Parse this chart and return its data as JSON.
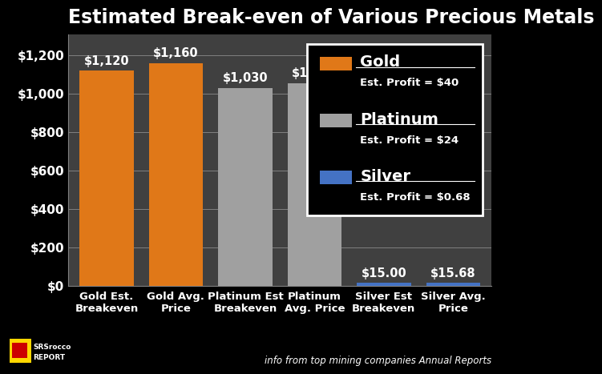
{
  "title": "Estimated Break-even of Various Precious Metals",
  "categories": [
    "Gold Est.\nBreakeven",
    "Gold Avg.\nPrice",
    "Platinum Est\nBreakeven",
    "Platinum\nAvg. Price",
    "Silver Est\nBreakeven",
    "Silver Avg.\nPrice"
  ],
  "values": [
    1120,
    1160,
    1030,
    1054,
    15.0,
    15.68
  ],
  "bar_colors": [
    "#E07818",
    "#E07818",
    "#A0A0A0",
    "#A0A0A0",
    "#4472C4",
    "#4472C4"
  ],
  "bar_labels": [
    "$1,120",
    "$1,160",
    "$1,030",
    "$1,054",
    "$15.00",
    "$15.68"
  ],
  "background_color": "#000000",
  "plot_bg_color": "#404040",
  "text_color": "#FFFFFF",
  "grid_color": "#808080",
  "ylabel_ticks": [
    0,
    200,
    400,
    600,
    800,
    1000,
    1200
  ],
  "ylabel_labels": [
    "$0",
    "$200",
    "$400",
    "$600",
    "$800",
    "$1,000",
    "$1,200"
  ],
  "ylim": [
    0,
    1310
  ],
  "legend_items": [
    {
      "label": "Gold",
      "color": "#E07818",
      "profit": "Est. Profit = $40"
    },
    {
      "label": "Platinum",
      "color": "#A0A0A0",
      "profit": "Est. Profit = $24"
    },
    {
      "label": "Silver",
      "color": "#4472C4",
      "profit": "Est. Profit = $0.68"
    }
  ],
  "footnote": "info from top mining companies Annual Reports",
  "title_fontsize": 17,
  "tick_fontsize": 11,
  "label_fontsize": 9.5
}
